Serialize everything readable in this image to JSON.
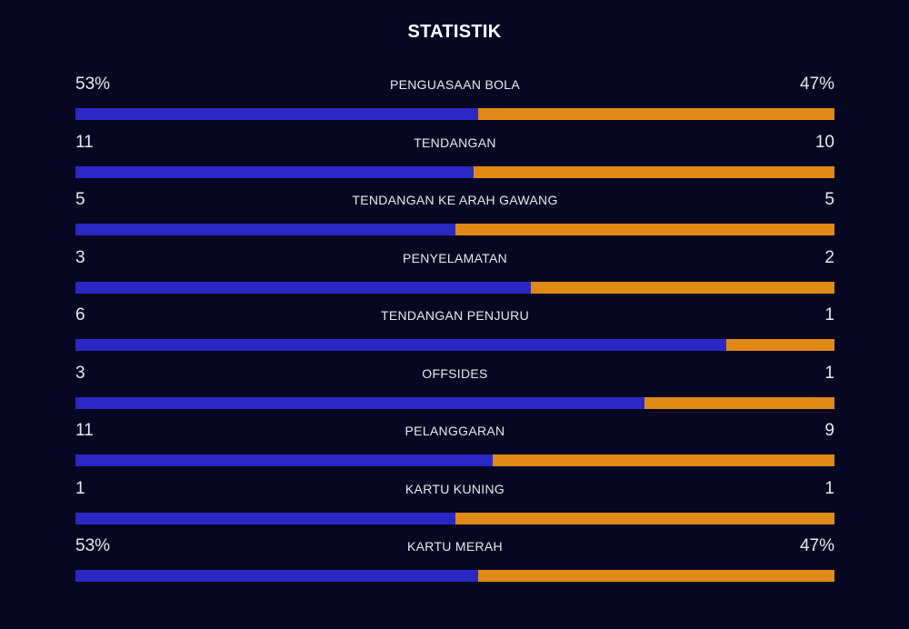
{
  "title": "STATISTIK",
  "colors": {
    "background": "#080723",
    "home": "#2a28c4",
    "away": "#e08a15"
  },
  "stats": [
    {
      "label": "PENGUASAAN BOLA",
      "left": "53%",
      "right": "47%",
      "left_share": 0.53
    },
    {
      "label": "TENDANGAN",
      "left": "11",
      "right": "10",
      "left_share": 0.524
    },
    {
      "label": "TENDANGAN KE ARAH GAWANG",
      "left": "5",
      "right": "5",
      "left_share": 0.5
    },
    {
      "label": "PENYELAMATAN",
      "left": "3",
      "right": "2",
      "left_share": 0.6
    },
    {
      "label": "TENDANGAN PENJURU",
      "left": "6",
      "right": "1",
      "left_share": 0.857
    },
    {
      "label": "OFFSIDES",
      "left": "3",
      "right": "1",
      "left_share": 0.75
    },
    {
      "label": "PELANGGARAN",
      "left": "11",
      "right": "9",
      "left_share": 0.55
    },
    {
      "label": "KARTU KUNING",
      "left": "1",
      "right": "1",
      "left_share": 0.5
    },
    {
      "label": "KARTU MERAH",
      "left": "53%",
      "right": "47%",
      "left_share": 0.53
    }
  ]
}
